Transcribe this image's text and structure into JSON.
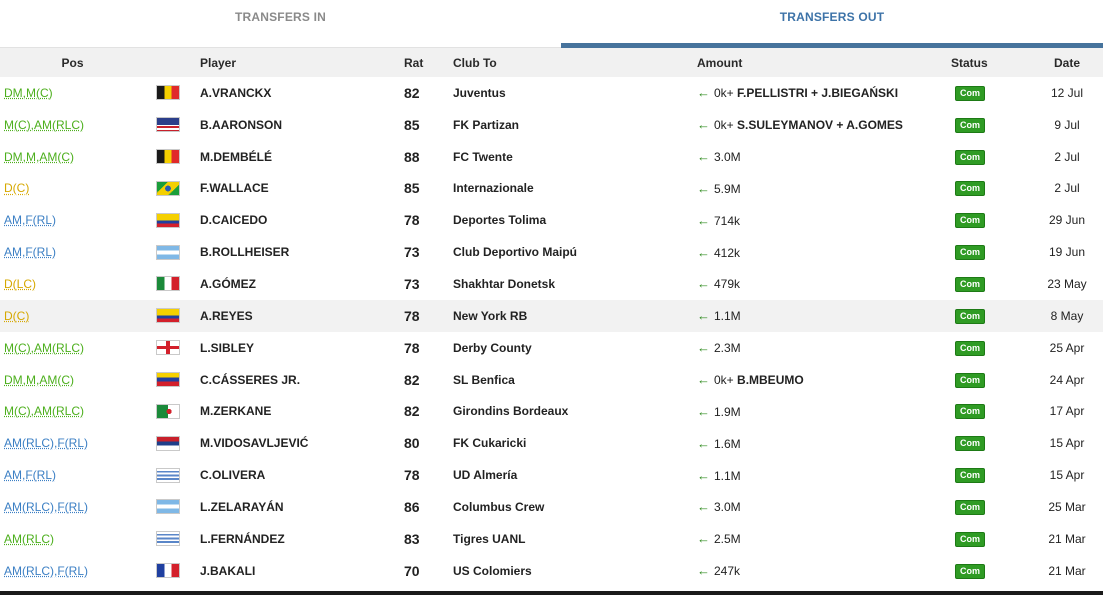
{
  "tabs": {
    "in_label": "TRANSFERS IN",
    "out_label": "TRANSFERS OUT",
    "active": "out"
  },
  "columns": {
    "pos": "Pos",
    "player": "Player",
    "rat": "Rat",
    "club_to": "Club To",
    "amount": "Amount",
    "status": "Status",
    "date": "Date"
  },
  "colors": {
    "green_pos": "#4caf1c",
    "yellow_pos": "#d6a800",
    "blue_pos": "#3b7fc4",
    "status_green": "#2f9b24",
    "arrow_green": "#2e8b1e",
    "tab_active": "#3d73a8"
  },
  "rows": [
    {
      "pos": "DM,M(C)",
      "pos_color": "#4caf1c",
      "flag": "belgium",
      "player": "A.VRANCKX",
      "rat": "82",
      "club": "Juventus",
      "amount": "0k+",
      "amount_extra": "F.PELLISTRI + J.BIEGAŃSKI",
      "status": "Com",
      "date": "12 Jul",
      "hl": false
    },
    {
      "pos": "M(C),AM(RLC)",
      "pos_color": "#4caf1c",
      "flag": "usa",
      "player": "B.AARONSON",
      "rat": "85",
      "club": "FK Partizan",
      "amount": "0k+",
      "amount_extra": "S.SULEYMANOV + A.GOMES",
      "status": "Com",
      "date": "9 Jul",
      "hl": false
    },
    {
      "pos": "DM,M,AM(C)",
      "pos_color": "#4caf1c",
      "flag": "belgium",
      "player": "M.DEMBÉLÉ",
      "rat": "88",
      "club": "FC Twente",
      "amount": "3.0M",
      "amount_extra": "",
      "status": "Com",
      "date": "2 Jul",
      "hl": false
    },
    {
      "pos": "D(C)",
      "pos_color": "#d6a800",
      "flag": "brazil",
      "player": "F.WALLACE",
      "rat": "85",
      "club": "Internazionale",
      "amount": "5.9M",
      "amount_extra": "",
      "status": "Com",
      "date": "2 Jul",
      "hl": false
    },
    {
      "pos": "AM,F(RL)",
      "pos_color": "#3b7fc4",
      "flag": "colombia",
      "player": "D.CAICEDO",
      "rat": "78",
      "club": "Deportes Tolima",
      "amount": "714k",
      "amount_extra": "",
      "status": "Com",
      "date": "29 Jun",
      "hl": false
    },
    {
      "pos": "AM,F(RL)",
      "pos_color": "#3b7fc4",
      "flag": "argentina",
      "player": "B.ROLLHEISER",
      "rat": "73",
      "club": "Club Deportivo Maipú",
      "amount": "412k",
      "amount_extra": "",
      "status": "Com",
      "date": "19 Jun",
      "hl": false
    },
    {
      "pos": "D(LC)",
      "pos_color": "#d6a800",
      "flag": "mexico",
      "player": "A.GÓMEZ",
      "rat": "73",
      "club": "Shakhtar Donetsk",
      "amount": "479k",
      "amount_extra": "",
      "status": "Com",
      "date": "23 May",
      "hl": false
    },
    {
      "pos": "D(C)",
      "pos_color": "#d6a800",
      "flag": "colombia",
      "player": "A.REYES",
      "rat": "78",
      "club": "New York RB",
      "amount": "1.1M",
      "amount_extra": "",
      "status": "Com",
      "date": "8 May",
      "hl": true
    },
    {
      "pos": "M(C),AM(RLC)",
      "pos_color": "#4caf1c",
      "flag": "england",
      "player": "L.SIBLEY",
      "rat": "78",
      "club": "Derby County",
      "amount": "2.3M",
      "amount_extra": "",
      "status": "Com",
      "date": "25 Apr",
      "hl": false
    },
    {
      "pos": "DM,M,AM(C)",
      "pos_color": "#4caf1c",
      "flag": "venezuela",
      "player": "C.CÁSSERES JR.",
      "rat": "82",
      "club": "SL Benfica",
      "amount": "0k+",
      "amount_extra": "B.MBEUMO",
      "status": "Com",
      "date": "24 Apr",
      "hl": false
    },
    {
      "pos": "M(C),AM(RLC)",
      "pos_color": "#4caf1c",
      "flag": "algeria",
      "player": "M.ZERKANE",
      "rat": "82",
      "club": "Girondins Bordeaux",
      "amount": "1.9M",
      "amount_extra": "",
      "status": "Com",
      "date": "17 Apr",
      "hl": false
    },
    {
      "pos": "AM(RLC),F(RL)",
      "pos_color": "#3b7fc4",
      "flag": "serbia",
      "player": "M.VIDOSAVLJEVIĆ",
      "rat": "80",
      "club": "FK Cukaricki",
      "amount": "1.6M",
      "amount_extra": "",
      "status": "Com",
      "date": "15 Apr",
      "hl": false
    },
    {
      "pos": "AM,F(RL)",
      "pos_color": "#3b7fc4",
      "flag": "uruguay",
      "player": "C.OLIVERA",
      "rat": "78",
      "club": "UD Almería",
      "amount": "1.1M",
      "amount_extra": "",
      "status": "Com",
      "date": "15 Apr",
      "hl": false
    },
    {
      "pos": "AM(RLC),F(RL)",
      "pos_color": "#3b7fc4",
      "flag": "argentina",
      "player": "L.ZELARAYÁN",
      "rat": "86",
      "club": "Columbus Crew",
      "amount": "3.0M",
      "amount_extra": "",
      "status": "Com",
      "date": "25 Mar",
      "hl": false
    },
    {
      "pos": "AM(RLC)",
      "pos_color": "#4caf1c",
      "flag": "uruguay",
      "player": "L.FERNÁNDEZ",
      "rat": "83",
      "club": "Tigres UANL",
      "amount": "2.5M",
      "amount_extra": "",
      "status": "Com",
      "date": "21 Mar",
      "hl": false
    },
    {
      "pos": "AM(RLC),F(RL)",
      "pos_color": "#3b7fc4",
      "flag": "france",
      "player": "J.BAKALI",
      "rat": "70",
      "club": "US Colomiers",
      "amount": "247k",
      "amount_extra": "",
      "status": "Com",
      "date": "21 Mar",
      "hl": false
    }
  ]
}
